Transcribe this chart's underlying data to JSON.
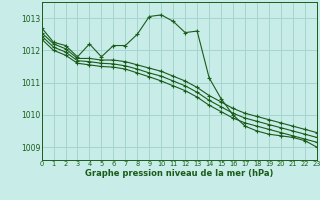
{
  "title": "Graphe pression niveau de la mer (hPa)",
  "background_color": "#c8ece8",
  "grid_color": "#a8d4d0",
  "line_color": "#1a5c1a",
  "xlim": [
    0,
    23
  ],
  "ylim": [
    1008.6,
    1013.5
  ],
  "yticks": [
    1009,
    1010,
    1011,
    1012,
    1013
  ],
  "xticks": [
    0,
    1,
    2,
    3,
    4,
    5,
    6,
    7,
    8,
    9,
    10,
    11,
    12,
    13,
    14,
    15,
    16,
    17,
    18,
    19,
    20,
    21,
    22,
    23
  ],
  "series": [
    {
      "x": [
        0,
        1,
        2,
        3,
        4,
        5,
        6,
        7,
        8,
        9,
        10,
        11,
        12,
        13,
        14,
        15,
        16,
        17,
        18,
        19,
        20,
        21,
        22,
        23
      ],
      "y": [
        1012.7,
        1012.25,
        1012.15,
        1011.8,
        1012.2,
        1011.8,
        1012.15,
        1012.15,
        1012.5,
        1013.05,
        1013.1,
        1012.9,
        1012.55,
        1012.6,
        1011.15,
        1010.5,
        1010.0,
        1009.65,
        1009.5,
        1009.4,
        1009.35,
        1009.3,
        1009.2,
        1009.0
      ]
    },
    {
      "x": [
        0,
        1,
        2,
        3,
        4,
        5,
        6,
        7,
        8,
        9,
        10,
        11,
        12,
        13,
        14,
        15,
        16,
        17,
        18,
        19,
        20,
        21,
        22,
        23
      ],
      "y": [
        1012.55,
        1012.2,
        1012.05,
        1011.75,
        1011.75,
        1011.7,
        1011.7,
        1011.65,
        1011.55,
        1011.45,
        1011.35,
        1011.2,
        1011.05,
        1010.85,
        1010.6,
        1010.4,
        1010.2,
        1010.05,
        1009.95,
        1009.85,
        1009.75,
        1009.65,
        1009.55,
        1009.45
      ]
    },
    {
      "x": [
        0,
        1,
        2,
        3,
        4,
        5,
        6,
        7,
        8,
        9,
        10,
        11,
        12,
        13,
        14,
        15,
        16,
        17,
        18,
        19,
        20,
        21,
        22,
        23
      ],
      "y": [
        1012.45,
        1012.1,
        1011.95,
        1011.68,
        1011.65,
        1011.6,
        1011.58,
        1011.52,
        1011.42,
        1011.3,
        1011.2,
        1011.05,
        1010.9,
        1010.7,
        1010.45,
        1010.25,
        1010.05,
        1009.9,
        1009.8,
        1009.7,
        1009.6,
        1009.5,
        1009.4,
        1009.3
      ]
    },
    {
      "x": [
        0,
        1,
        2,
        3,
        4,
        5,
        6,
        7,
        8,
        9,
        10,
        11,
        12,
        13,
        14,
        15,
        16,
        17,
        18,
        19,
        20,
        21,
        22,
        23
      ],
      "y": [
        1012.35,
        1012.0,
        1011.85,
        1011.6,
        1011.55,
        1011.5,
        1011.48,
        1011.42,
        1011.3,
        1011.18,
        1011.05,
        1010.9,
        1010.75,
        1010.55,
        1010.3,
        1010.1,
        1009.9,
        1009.75,
        1009.65,
        1009.55,
        1009.45,
        1009.35,
        1009.25,
        1009.15
      ]
    }
  ]
}
